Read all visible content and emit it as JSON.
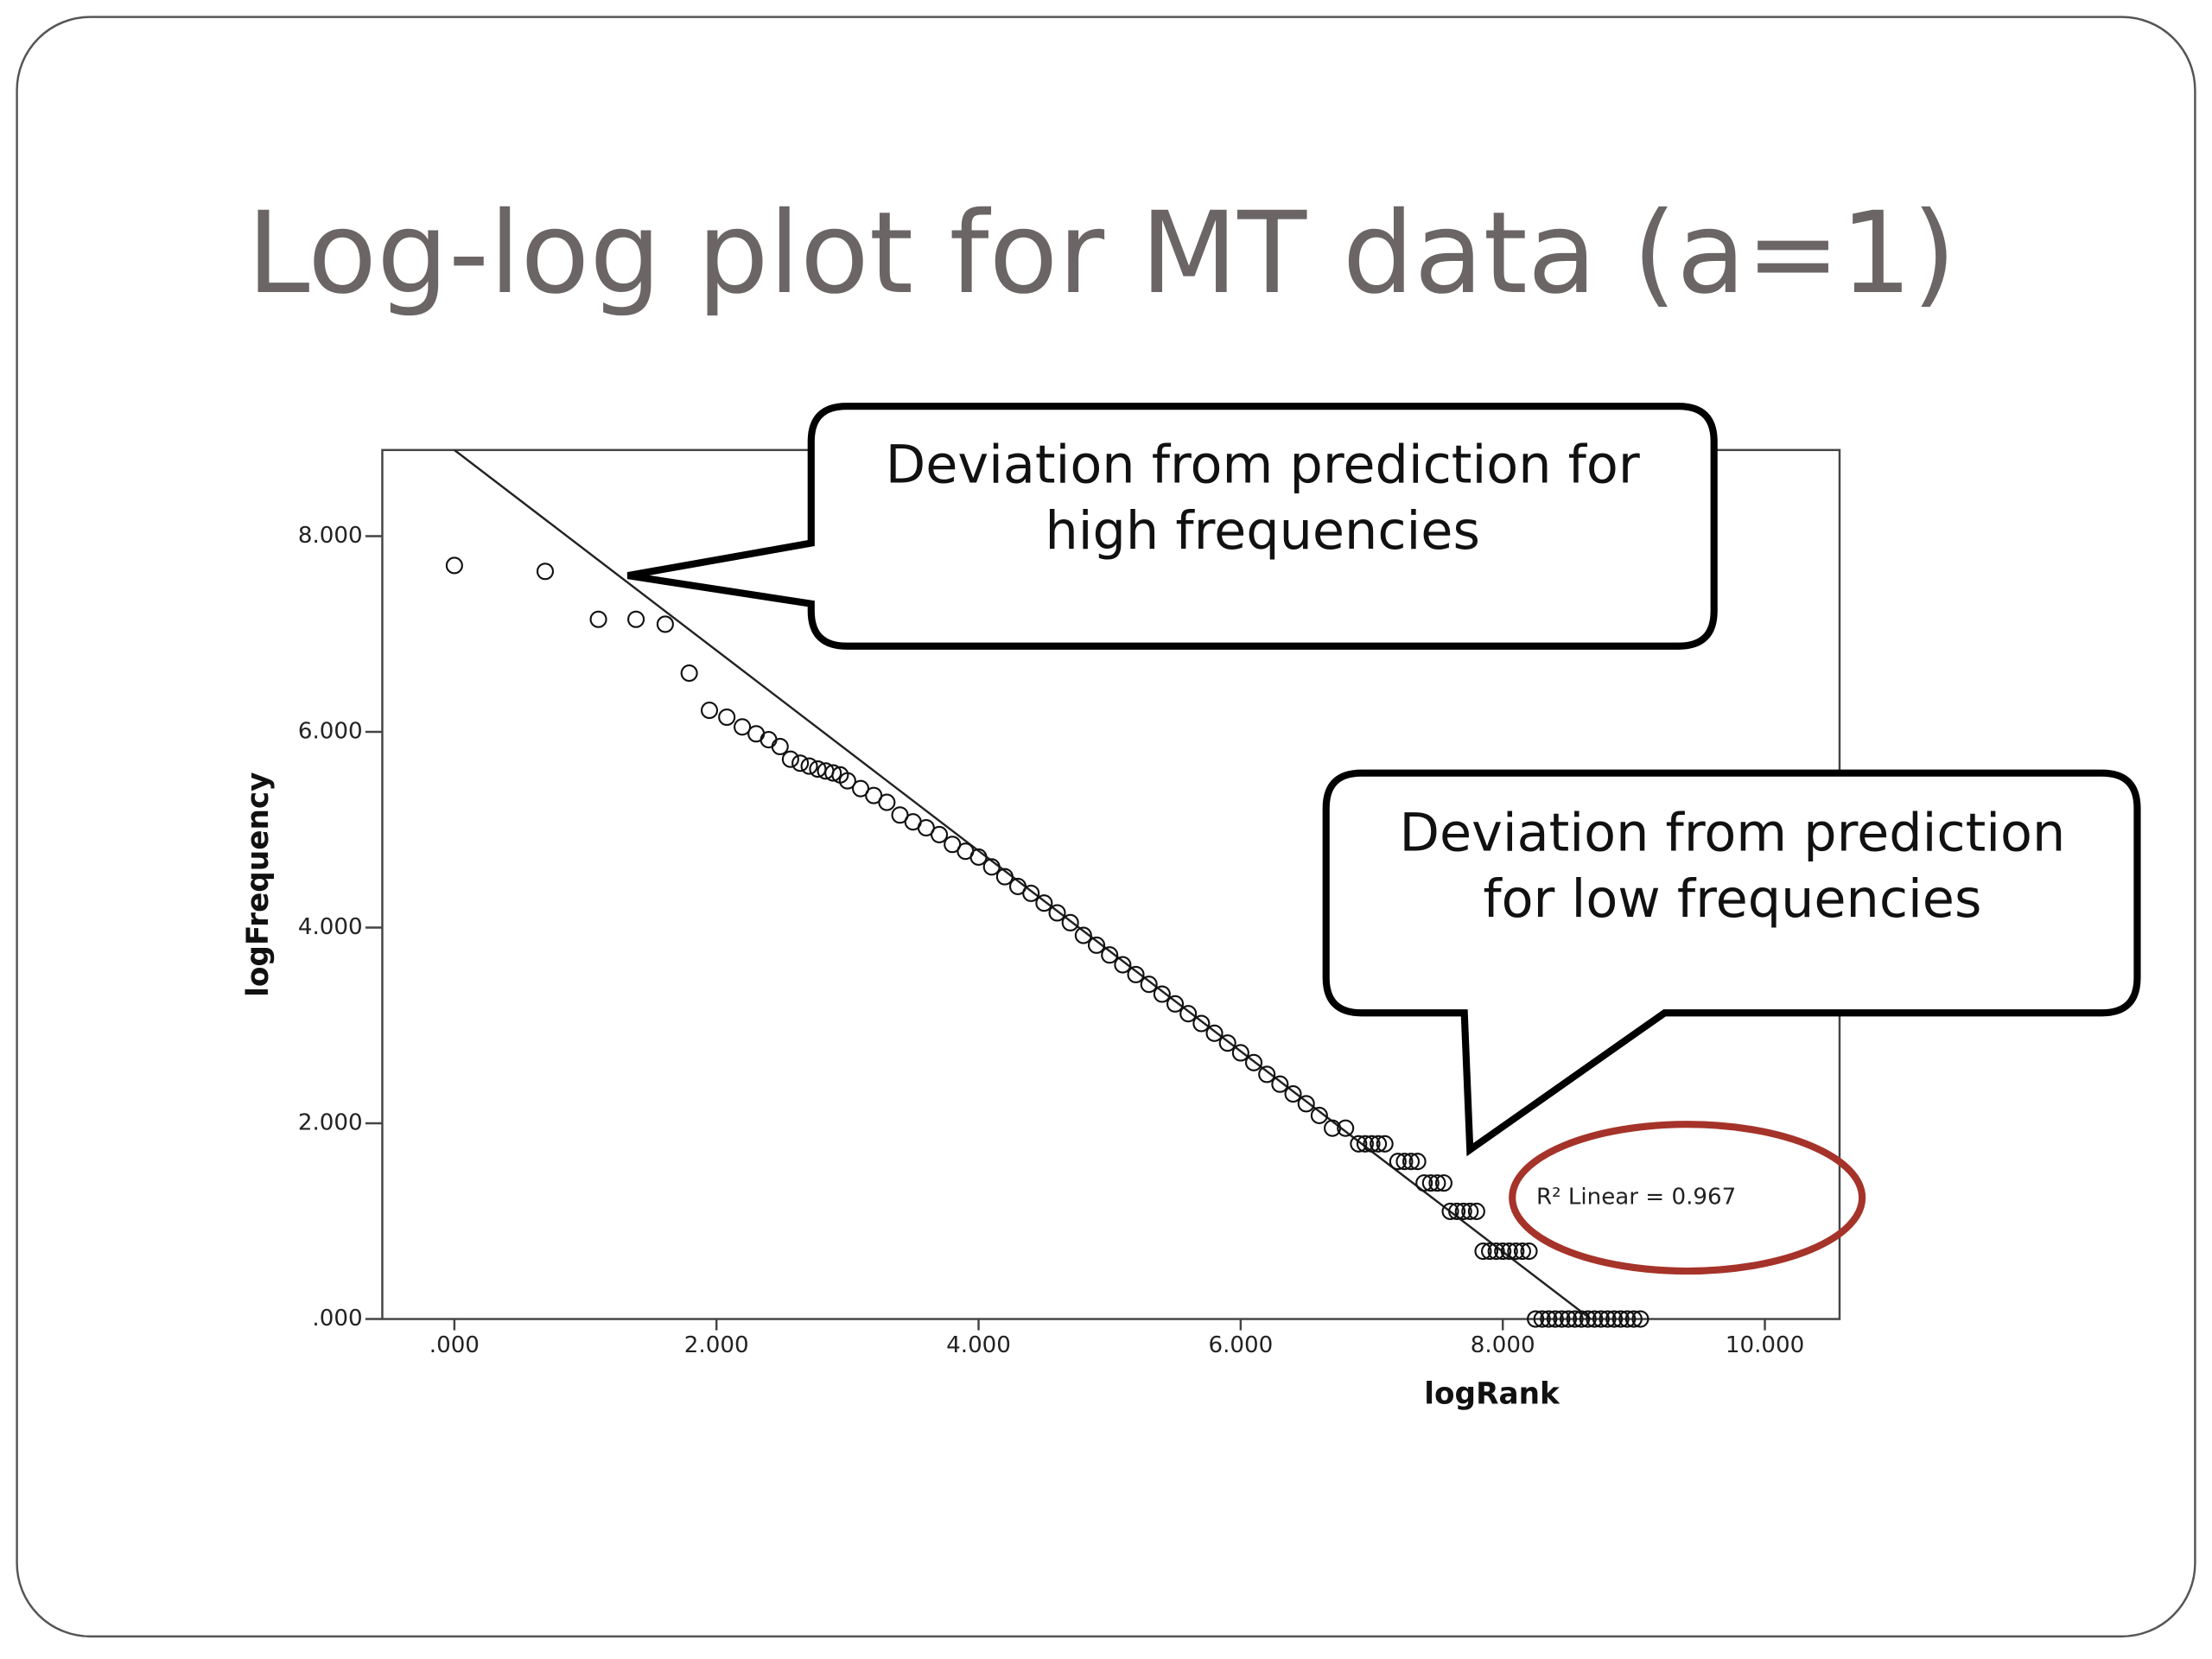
{
  "chart_data": {
    "type": "scatter",
    "title": "Log-log plot for MT data (a=1)",
    "x_label": "logRank",
    "y_label": "logFrequency",
    "xlim": [
      -0.55,
      10.57
    ],
    "ylim": [
      0,
      8.88
    ],
    "xticks": [
      {
        "value": 0,
        "label": ".000"
      },
      {
        "value": 2,
        "label": "2.000"
      },
      {
        "value": 4,
        "label": "4.000"
      },
      {
        "value": 6,
        "label": "6.000"
      },
      {
        "value": 8,
        "label": "8.000"
      },
      {
        "value": 10,
        "label": "10.000"
      }
    ],
    "yticks": [
      {
        "value": 0,
        "label": ".000"
      },
      {
        "value": 2,
        "label": "2.000"
      },
      {
        "value": 4,
        "label": "4.000"
      },
      {
        "value": 6,
        "label": "6.000"
      },
      {
        "value": 8,
        "label": "8.000"
      }
    ],
    "color": "#111111",
    "x": [
      0,
      0.693,
      1.099,
      1.386,
      1.609,
      1.792,
      1.946,
      2.079,
      2.197,
      2.303,
      2.398,
      2.485,
      2.565,
      2.639,
      2.708,
      2.773,
      2.833,
      2.89,
      2.944,
      3.0,
      3.1,
      3.2,
      3.3,
      3.4,
      3.5,
      3.6,
      3.7,
      3.8,
      3.9,
      4.0,
      4.1,
      4.2,
      4.3,
      4.4,
      4.5,
      4.6,
      4.7,
      4.8,
      4.9,
      5.0,
      5.1,
      5.2,
      5.3,
      5.4,
      5.5,
      5.6,
      5.7,
      5.8,
      5.9,
      6.0,
      6.1,
      6.2,
      6.3,
      6.4,
      6.5,
      6.6,
      6.7,
      6.8,
      6.9,
      6.95,
      7.0,
      7.05,
      7.1,
      7.2,
      7.25,
      7.3,
      7.35,
      7.4,
      7.45,
      7.5,
      7.55,
      7.6,
      7.65,
      7.7,
      7.75,
      7.8,
      7.85,
      7.9,
      7.95,
      8.0,
      8.05,
      8.1,
      8.15,
      8.2,
      8.25,
      8.3,
      8.35,
      8.4,
      8.45,
      8.5,
      8.55,
      8.6,
      8.65,
      8.7,
      8.75,
      8.8,
      8.85,
      8.9,
      8.95,
      9.0,
      9.05
    ],
    "y": [
      7.7,
      7.64,
      7.15,
      7.15,
      7.1,
      6.6,
      6.22,
      6.15,
      6.05,
      5.98,
      5.92,
      5.85,
      5.72,
      5.68,
      5.65,
      5.62,
      5.6,
      5.58,
      5.56,
      5.5,
      5.42,
      5.35,
      5.28,
      5.15,
      5.08,
      5.02,
      4.95,
      4.85,
      4.78,
      4.72,
      4.62,
      4.52,
      4.42,
      4.35,
      4.25,
      4.15,
      4.05,
      3.92,
      3.82,
      3.72,
      3.62,
      3.52,
      3.42,
      3.32,
      3.22,
      3.12,
      3.02,
      2.92,
      2.82,
      2.72,
      2.62,
      2.5,
      2.4,
      2.3,
      2.2,
      2.08,
      1.95,
      1.95,
      1.79,
      1.79,
      1.79,
      1.79,
      1.79,
      1.61,
      1.61,
      1.61,
      1.61,
      1.39,
      1.39,
      1.39,
      1.39,
      1.1,
      1.1,
      1.1,
      1.1,
      1.1,
      0.693,
      0.693,
      0.693,
      0.693,
      0.693,
      0.693,
      0.693,
      0.693,
      0,
      0,
      0,
      0,
      0,
      0,
      0,
      0,
      0,
      0,
      0,
      0,
      0,
      0,
      0,
      0,
      0
    ],
    "fit": {
      "intercept": 8.88,
      "slope": -1.024
    },
    "fit_label": "R² Linear = 0.967",
    "annotations": [
      {
        "lines": [
          "Deviation from prediction for",
          "high frequencies"
        ]
      },
      {
        "lines": [
          "Deviation from prediction",
          "for low frequencies"
        ]
      }
    ]
  }
}
